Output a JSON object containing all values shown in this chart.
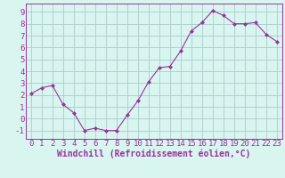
{
  "x": [
    0,
    1,
    2,
    3,
    4,
    5,
    6,
    7,
    8,
    9,
    10,
    11,
    12,
    13,
    14,
    15,
    16,
    17,
    18,
    19,
    20,
    21,
    22,
    23
  ],
  "y": [
    2.1,
    2.6,
    2.8,
    1.2,
    0.5,
    -1.0,
    -0.8,
    -1.0,
    -1.0,
    0.3,
    1.5,
    3.1,
    4.3,
    4.4,
    5.7,
    7.4,
    8.1,
    9.1,
    8.7,
    8.0,
    8.0,
    8.1,
    7.1,
    6.5
  ],
  "line_color": "#993399",
  "marker": "D",
  "marker_size": 2,
  "bg_color": "#d9f5f0",
  "grid_color": "#aacccc",
  "xlabel": "Windchill (Refroidissement éolien,°C)",
  "xlabel_color": "#993399",
  "xlabel_fontsize": 7,
  "ylabel_ticks": [
    -1,
    0,
    1,
    2,
    3,
    4,
    5,
    6,
    7,
    8,
    9
  ],
  "xlim": [
    -0.5,
    23.5
  ],
  "ylim": [
    -1.7,
    9.7
  ],
  "tick_fontsize": 6.5
}
